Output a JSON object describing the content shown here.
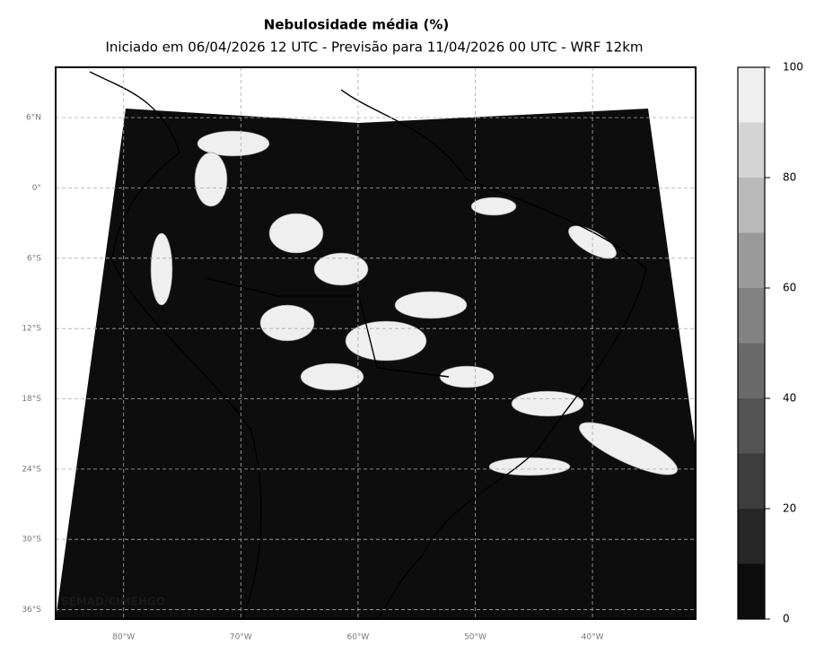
{
  "map": {
    "title": "Nebulosidade média (%)",
    "subtitle": "Iniciado em 06/04/2026 12 UTC - Previsão para 11/04/2026 00 UTC - WRF 12km",
    "xlim": [
      -85.8,
      -31.2
    ],
    "ylim": [
      -36.8,
      10.3
    ],
    "lat_ticks": [
      {
        "value": 6,
        "label": "6°N"
      },
      {
        "value": 0,
        "label": "0°"
      },
      {
        "value": -6,
        "label": "6°S"
      },
      {
        "value": -12,
        "label": "12°S"
      },
      {
        "value": -18,
        "label": "18°S"
      },
      {
        "value": -24,
        "label": "24°S"
      },
      {
        "value": -30,
        "label": "30°S"
      },
      {
        "value": -36,
        "label": "36°S"
      }
    ],
    "lon_ticks": [
      {
        "value": -80,
        "label": "80°W"
      },
      {
        "value": -70,
        "label": "70°W"
      },
      {
        "value": -60,
        "label": "60°W"
      },
      {
        "value": -50,
        "label": "50°W"
      },
      {
        "value": -40,
        "label": "40°W"
      }
    ],
    "watermark": "SEMAD/CIMEHGO",
    "colorbar": {
      "levels": [
        0,
        10,
        20,
        30,
        40,
        50,
        60,
        70,
        80,
        90,
        100
      ],
      "ticks": [
        0,
        20,
        40,
        60,
        80,
        100
      ],
      "colors": [
        "#0d0d0d",
        "#272727",
        "#3d3d3d",
        "#545454",
        "#6a6a6a",
        "#828282",
        "#9a9a9a",
        "#b9b9b9",
        "#d4d4d4",
        "#efefef"
      ]
    }
  }
}
